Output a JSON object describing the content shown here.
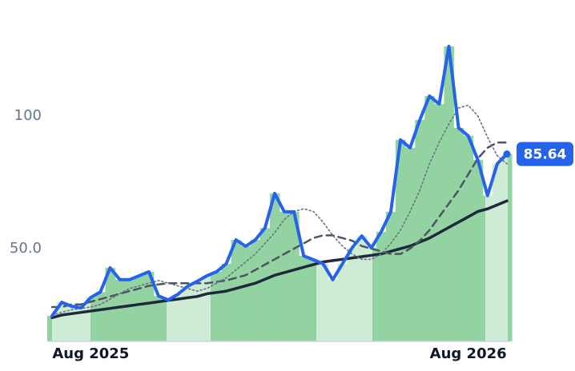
{
  "chart_data": {
    "type": "line",
    "categories": [
      null,
      null,
      null,
      null,
      "Aug 2025",
      null,
      null,
      null,
      null,
      null,
      null,
      null,
      null,
      null,
      null,
      null,
      null,
      null,
      null,
      null,
      null,
      null,
      null,
      null,
      null,
      null,
      null,
      null,
      null,
      null,
      null,
      null,
      null,
      null,
      null,
      null,
      null,
      null,
      null,
      null,
      null,
      null,
      null,
      "Aug 2026",
      null,
      null,
      null,
      null
    ],
    "series": [
      {
        "color": "#2563eb",
        "style": "solid",
        "width": 4,
        "values": [
          24.7,
          29.8,
          28.3,
          27.7,
          31.6,
          33.7,
          42.8,
          38.3,
          38.3,
          39.8,
          41.3,
          32.2,
          30.7,
          32.8,
          35.8,
          37.7,
          39.8,
          41.3,
          44.3,
          53.3,
          50.9,
          53.3,
          57.8,
          70.8,
          63.9,
          63.9,
          47.3,
          45.8,
          44.3,
          38.3,
          44.3,
          50.3,
          54.8,
          50.3,
          56.3,
          63.9,
          91.0,
          88.0,
          98.5,
          107.5,
          104.5,
          126.2,
          95.5,
          92.5,
          83.4,
          70.0,
          82.0,
          85.64
        ]
      },
      {
        "color": "#6b7280",
        "style": "dotted",
        "width": 1.6,
        "values": [
          25,
          26,
          27,
          27.5,
          28,
          29,
          31,
          33,
          35,
          36,
          37,
          38,
          37,
          36,
          35,
          34,
          35,
          37,
          39,
          42,
          45,
          48,
          52,
          56,
          61,
          64,
          65,
          64,
          60,
          55,
          51,
          48,
          46,
          46,
          48,
          52,
          57,
          64,
          72,
          82,
          90,
          97,
          103,
          104,
          100,
          92,
          85,
          82
        ]
      },
      {
        "color": "#4b5563",
        "style": "dashed",
        "width": 2.5,
        "values": [
          28,
          28,
          29,
          29,
          30,
          31,
          32,
          33,
          34,
          35,
          36,
          36.5,
          37,
          37,
          37,
          37,
          37,
          37.5,
          38,
          39,
          40,
          42,
          44,
          46,
          48,
          50,
          52,
          54,
          55,
          55,
          54,
          53,
          51,
          50,
          49,
          48,
          48,
          50,
          53,
          57,
          62,
          67,
          72,
          78,
          84,
          88,
          90,
          90
        ]
      },
      {
        "color": "#1e293b",
        "style": "solid",
        "width": 3.5,
        "values": [
          24,
          25,
          25.5,
          26,
          26.5,
          27,
          27.5,
          28,
          28.5,
          29,
          29.5,
          30,
          30.5,
          31,
          31.5,
          32,
          33,
          33.5,
          34,
          35,
          36,
          37,
          38.5,
          40,
          41,
          42,
          43,
          44,
          45,
          45.5,
          46,
          46.5,
          47,
          47.5,
          48,
          49,
          50,
          51,
          52.5,
          54,
          56,
          58,
          60,
          62,
          64,
          65,
          66.5,
          68
        ]
      }
    ],
    "area_color": "#93d3a2",
    "ylim": [
      15,
      132
    ],
    "yticks": [
      {
        "value": 50,
        "label": "50.0"
      },
      100
    ],
    "grid": false
  }
}
